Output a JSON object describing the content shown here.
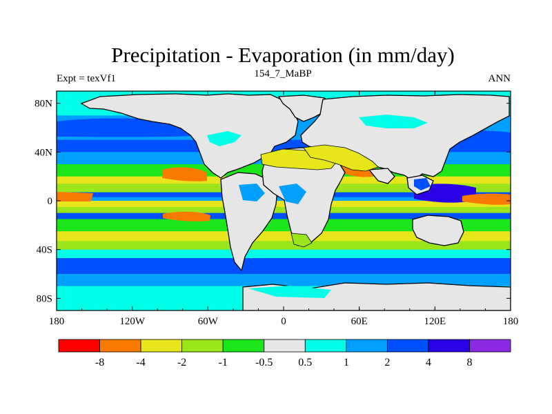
{
  "chart_data": {
    "type": "heatmap",
    "title": "Precipitation - Evaporation (in mm/day)",
    "left_label": "Expt = texVf1",
    "center_label": "154_7_MaBP",
    "right_label": "ANN",
    "x_range": [
      -180,
      180
    ],
    "y_range": [
      -90,
      90
    ],
    "x_ticks": [
      {
        "value": -180,
        "label": "180"
      },
      {
        "value": -120,
        "label": "120W"
      },
      {
        "value": -60,
        "label": "60W"
      },
      {
        "value": 0,
        "label": "0"
      },
      {
        "value": 60,
        "label": "60E"
      },
      {
        "value": 120,
        "label": "120E"
      },
      {
        "value": 180,
        "label": "180"
      }
    ],
    "y_ticks": [
      {
        "value": 80,
        "label": "80N"
      },
      {
        "value": 40,
        "label": "40N"
      },
      {
        "value": 0,
        "label": "0"
      },
      {
        "value": -40,
        "label": "40S"
      },
      {
        "value": -80,
        "label": "80S"
      }
    ],
    "levels": [
      -8,
      -4,
      -2,
      -1,
      -0.5,
      0.5,
      1,
      2,
      4,
      8
    ],
    "level_labels": [
      "-8",
      "-4",
      "-2",
      "-1",
      "-0.5",
      "0.5",
      "1",
      "2",
      "4",
      "8"
    ],
    "colors": [
      "#ff0000",
      "#f97a00",
      "#e6e61a",
      "#9be61a",
      "#1ae61a",
      "#e6e6e6",
      "#00ffe6",
      "#00a0ff",
      "#0050ff",
      "#2a00e6",
      "#8a2be2"
    ],
    "zonal_profile": [
      {
        "lat": 90,
        "value": 0.8
      },
      {
        "lat": 80,
        "value": 0.8
      },
      {
        "lat": 70,
        "value": 1.2
      },
      {
        "lat": 60,
        "value": 1.8
      },
      {
        "lat": 50,
        "value": 3.0
      },
      {
        "lat": 40,
        "value": 1.5
      },
      {
        "lat": 30,
        "value": -0.7
      },
      {
        "lat": 20,
        "value": -2.2
      },
      {
        "lat": 14,
        "value": -2.0
      },
      {
        "lat": 7,
        "value": 3.0
      },
      {
        "lat": 3,
        "value": 1.5
      },
      {
        "lat": 0,
        "value": -2.5
      },
      {
        "lat": -5,
        "value": -1.5
      },
      {
        "lat": -10,
        "value": 2.5
      },
      {
        "lat": -15,
        "value": -1.0
      },
      {
        "lat": -25,
        "value": -2.5
      },
      {
        "lat": -33,
        "value": -1.2
      },
      {
        "lat": -40,
        "value": 0.8
      },
      {
        "lat": -47,
        "value": 2.6
      },
      {
        "lat": -53,
        "value": 2.4
      },
      {
        "lat": -60,
        "value": 1.3
      },
      {
        "lat": -70,
        "value": 0.8
      },
      {
        "lat": -90,
        "value": 0.6
      }
    ]
  }
}
